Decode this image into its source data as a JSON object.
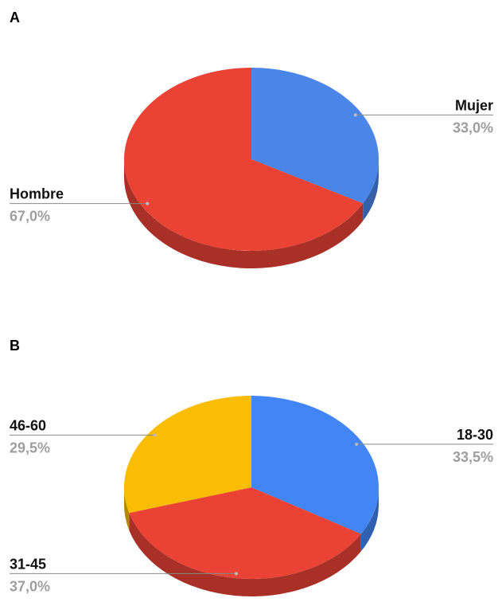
{
  "chart_data": [
    {
      "type": "pie",
      "title": "A",
      "categories": [
        "Mujer",
        "Hombre"
      ],
      "values": [
        33.0,
        67.0
      ],
      "value_labels": [
        "33,0%",
        "67,0%"
      ],
      "colors": [
        "#4a86e8",
        "#ea4335"
      ]
    },
    {
      "type": "pie",
      "title": "B",
      "categories": [
        "18-30",
        "31-45",
        "46-60"
      ],
      "values": [
        33.5,
        37.0,
        29.5
      ],
      "value_labels": [
        "33,5%",
        "37,0%",
        "29,5%"
      ],
      "colors": [
        "#4285f4",
        "#ea4335",
        "#fbbc04"
      ]
    }
  ]
}
